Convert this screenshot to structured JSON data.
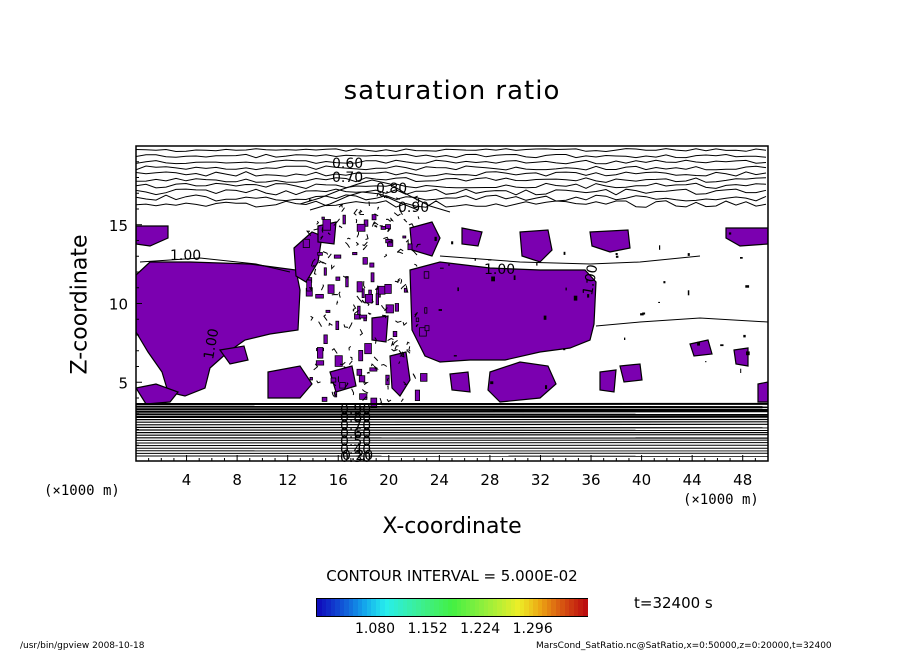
{
  "chart_data": {
    "type": "contour",
    "title": "saturation ratio",
    "xlabel": "X-coordinate",
    "ylabel": "Z-coordinate",
    "x_unit_left": "(×1000 m)",
    "x_unit_right": "(×1000 m)",
    "xlim": [
      0,
      50
    ],
    "ylim": [
      0,
      20
    ],
    "x_ticks": [
      "4",
      "8",
      "12",
      "16",
      "20",
      "24",
      "28",
      "32",
      "36",
      "40",
      "44",
      "48"
    ],
    "y_ticks": [
      "5",
      "10",
      "15"
    ],
    "contour_interval_label": "CONTOUR INTERVAL = 5.000E-02",
    "contour_labels": [
      "0.60",
      "0.70",
      "0.80",
      "0.90",
      "1.00",
      "1.00",
      "1.00",
      "1.00",
      "0.90",
      "0.80",
      "0.70",
      "0.60",
      "0.50",
      "0.40",
      "0.30",
      "0.20"
    ],
    "fill_threshold": 1.0,
    "fill_color": "#7b00b0",
    "colorbar_ticks": [
      "1.080",
      "1.152",
      "1.224",
      "1.296"
    ],
    "time_label": "t=32400 s",
    "footer_left": "/usr/bin/gpview 2008-10-18",
    "footer_right": "MarsCond_SatRatio.nc@SatRatio,x=0:50000,z=0:20000,t=32400"
  }
}
